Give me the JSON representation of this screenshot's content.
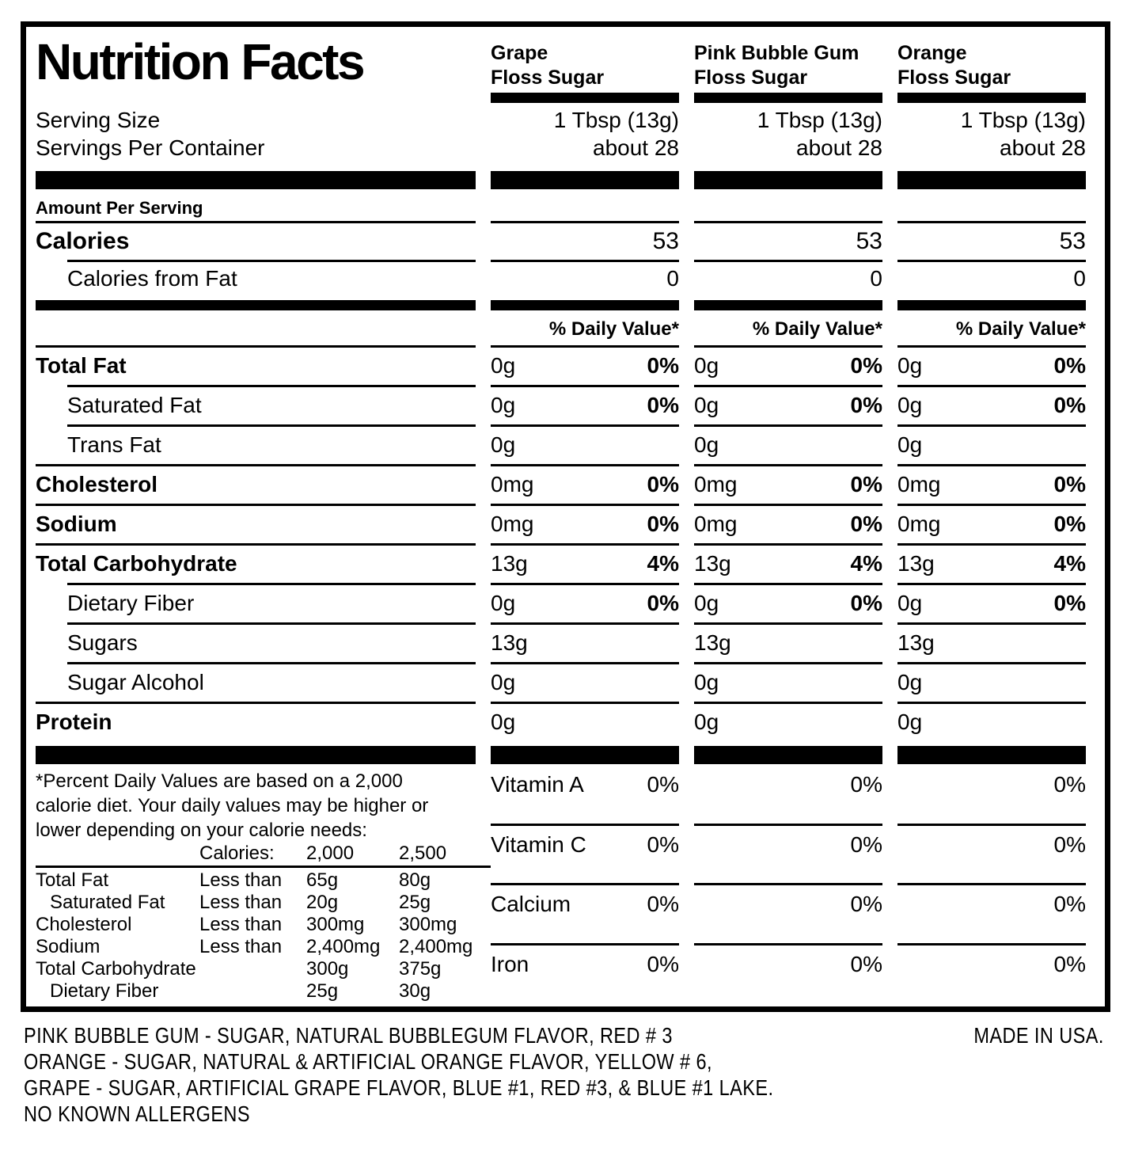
{
  "colors": {
    "ink": "#000000",
    "background": "#ffffff"
  },
  "header": {
    "title": "Nutrition Facts",
    "products": [
      {
        "name_line1": "Grape",
        "name_line2": "Floss Sugar"
      },
      {
        "name_line1": "Pink Bubble Gum",
        "name_line2": "Floss Sugar"
      },
      {
        "name_line1": "Orange",
        "name_line2": "Floss Sugar"
      }
    ]
  },
  "serving": {
    "size_label": "Serving Size",
    "per_container_label": "Servings Per Container",
    "values": [
      {
        "size": "1 Tbsp (13g)",
        "count": "about 28"
      },
      {
        "size": "1 Tbsp (13g)",
        "count": "about 28"
      },
      {
        "size": "1 Tbsp (13g)",
        "count": "about 28"
      }
    ]
  },
  "amount_per_serving_label": "Amount Per Serving",
  "calories": {
    "label": "Calories",
    "values": [
      "53",
      "53",
      "53"
    ]
  },
  "calories_from_fat": {
    "label": "Calories from Fat",
    "values": [
      "0",
      "0",
      "0"
    ]
  },
  "daily_value_header": "% Daily Value*",
  "nutrients": [
    {
      "label": "Total Fat",
      "amounts": [
        "0g",
        "0g",
        "0g"
      ],
      "dv": [
        "0%",
        "0%",
        "0%"
      ]
    },
    {
      "label": "Saturated Fat",
      "amounts": [
        "0g",
        "0g",
        "0g"
      ],
      "dv": [
        "0%",
        "0%",
        "0%"
      ]
    },
    {
      "label": "Trans Fat",
      "amounts": [
        "0g",
        "0g",
        "0g"
      ],
      "dv": [
        "",
        "",
        ""
      ]
    },
    {
      "label": "Cholesterol",
      "amounts": [
        "0mg",
        "0mg",
        "0mg"
      ],
      "dv": [
        "0%",
        "0%",
        "0%"
      ]
    },
    {
      "label": "Sodium",
      "amounts": [
        "0mg",
        "0mg",
        "0mg"
      ],
      "dv": [
        "0%",
        "0%",
        "0%"
      ]
    },
    {
      "label": "Total Carbohydrate",
      "amounts": [
        "13g",
        "13g",
        "13g"
      ],
      "dv": [
        "4%",
        "4%",
        "4%"
      ]
    },
    {
      "label": "Dietary Fiber",
      "amounts": [
        "0g",
        "0g",
        "0g"
      ],
      "dv": [
        "0%",
        "0%",
        "0%"
      ]
    },
    {
      "label": "Sugars",
      "amounts": [
        "13g",
        "13g",
        "13g"
      ],
      "dv": [
        "",
        "",
        ""
      ]
    },
    {
      "label": "Sugar Alcohol",
      "amounts": [
        "0g",
        "0g",
        "0g"
      ],
      "dv": [
        "",
        "",
        ""
      ]
    },
    {
      "label": "Protein",
      "amounts": [
        "0g",
        "0g",
        "0g"
      ],
      "dv": [
        "",
        "",
        ""
      ]
    }
  ],
  "vitamins": [
    {
      "label": "Vitamin A",
      "values": [
        "0%",
        "0%",
        "0%"
      ]
    },
    {
      "label": "Vitamin C",
      "values": [
        "0%",
        "0%",
        "0%"
      ]
    },
    {
      "label": "Calcium",
      "values": [
        "0%",
        "0%",
        "0%"
      ]
    },
    {
      "label": "Iron",
      "values": [
        "0%",
        "0%",
        "0%"
      ]
    }
  ],
  "footnote": {
    "lines": [
      "*Percent Daily Values are based on a 2,000",
      "calorie diet. Your daily values may be higher or",
      "lower depending on your calorie needs:"
    ],
    "table": {
      "header": {
        "calories_label": "Calories:",
        "col1": "2,000",
        "col2": "2,500"
      },
      "rows": [
        {
          "label": "Total Fat",
          "qualifier": "Less than",
          "v1": "65g",
          "v2": "80g"
        },
        {
          "label": "Saturated Fat",
          "qualifier": "Less than",
          "v1": "20g",
          "v2": "25g"
        },
        {
          "label": "Cholesterol",
          "qualifier": "Less than",
          "v1": "300mg",
          "v2": "300mg"
        },
        {
          "label": "Sodium",
          "qualifier": "Less than",
          "v1": "2,400mg",
          "v2": "2,400mg"
        },
        {
          "label": "Total Carbohydrate",
          "qualifier": "",
          "v1": "300g",
          "v2": "375g"
        },
        {
          "label": "Dietary Fiber",
          "qualifier": "",
          "v1": "25g",
          "v2": "30g"
        }
      ]
    }
  },
  "ingredients": {
    "lines": [
      "PINK BUBBLE GUM - SUGAR, NATURAL BUBBLEGUM FLAVOR, RED # 3",
      "ORANGE - SUGAR, NATURAL & ARTIFICIAL ORANGE FLAVOR, YELLOW # 6,",
      "GRAPE - SUGAR, ARTIFICIAL GRAPE FLAVOR, BLUE #1, RED #3, & BLUE #1 LAKE.",
      "NO KNOWN ALLERGENS"
    ],
    "made_in": "MADE IN USA."
  }
}
